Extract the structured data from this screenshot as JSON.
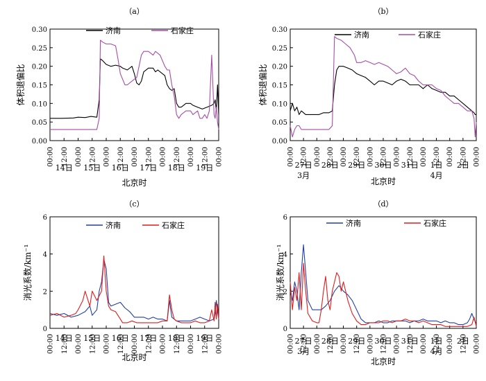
{
  "chart_data": [
    {
      "type": "line",
      "title": "（a）",
      "xlabel": "北京时",
      "ylabel": "体积退偏比",
      "ylim": [
        0,
        0.3
      ],
      "yticks": [
        0.0,
        0.05,
        0.1,
        0.15,
        0.2,
        0.25,
        0.3
      ],
      "ytick_labels": [
        "0.00",
        "0.05",
        "0.10",
        "0.15",
        "0.20",
        "0.25",
        "0.30"
      ],
      "xlim": [
        0,
        144
      ],
      "xtick_labels": [
        "00:00",
        "12:00",
        "00:00",
        "12:00",
        "00:00",
        "12:00",
        "00:00",
        "12:00",
        "00:00",
        "12:00",
        "00:00",
        "12:00",
        "00:00"
      ],
      "day_labels": [
        {
          "x": 12,
          "label": "14日"
        },
        {
          "x": 36,
          "label": "15日"
        },
        {
          "x": 60,
          "label": "16日"
        },
        {
          "x": 84,
          "label": "17日"
        },
        {
          "x": 108,
          "label": "18日"
        },
        {
          "x": 132,
          "label": "19日"
        }
      ],
      "month_labels": [],
      "legend": "top-inside",
      "series": [
        {
          "name": "济南",
          "color": "#000000",
          "x": [
            0,
            10,
            20,
            24,
            30,
            35,
            40,
            42,
            43,
            45,
            48,
            52,
            56,
            60,
            62,
            66,
            70,
            72,
            74,
            76,
            78,
            80,
            84,
            88,
            90,
            92,
            96,
            98,
            100,
            102,
            104,
            106,
            108,
            110,
            112,
            116,
            120,
            122,
            126,
            130,
            134,
            138,
            140,
            141,
            142,
            143,
            144
          ],
          "y": [
            0.06,
            0.06,
            0.061,
            0.063,
            0.062,
            0.065,
            0.063,
            0.11,
            0.22,
            0.215,
            0.205,
            0.2,
            0.203,
            0.2,
            0.195,
            0.19,
            0.2,
            0.18,
            0.155,
            0.15,
            0.16,
            0.185,
            0.195,
            0.195,
            0.185,
            0.19,
            0.18,
            0.175,
            0.15,
            0.14,
            0.135,
            0.14,
            0.1,
            0.09,
            0.09,
            0.1,
            0.1,
            0.095,
            0.09,
            0.085,
            0.09,
            0.095,
            0.1,
            0.11,
            0.08,
            0.15,
            0.07
          ]
        },
        {
          "name": "石家庄",
          "color": "#a64ca6",
          "x": [
            0,
            10,
            20,
            24,
            30,
            35,
            40,
            42,
            43,
            45,
            48,
            52,
            56,
            58,
            60,
            64,
            66,
            70,
            74,
            78,
            80,
            84,
            88,
            90,
            94,
            98,
            100,
            102,
            104,
            106,
            108,
            110,
            112,
            116,
            120,
            122,
            126,
            128,
            130,
            132,
            134,
            136,
            138,
            140,
            141,
            142,
            143,
            144
          ],
          "y": [
            0.03,
            0.03,
            0.03,
            0.03,
            0.03,
            0.03,
            0.03,
            0.06,
            0.27,
            0.265,
            0.26,
            0.26,
            0.255,
            0.22,
            0.18,
            0.15,
            0.15,
            0.16,
            0.17,
            0.23,
            0.24,
            0.24,
            0.23,
            0.24,
            0.23,
            0.2,
            0.19,
            0.19,
            0.15,
            0.12,
            0.07,
            0.06,
            0.07,
            0.08,
            0.08,
            0.07,
            0.08,
            0.06,
            0.06,
            0.07,
            0.06,
            0.08,
            0.23,
            0.07,
            0.06,
            0.09,
            0.05,
            0.03
          ]
        }
      ]
    },
    {
      "type": "line",
      "title": "（b）",
      "xlabel": "北京时",
      "ylabel": "体积退偏比",
      "ylim": [
        0,
        0.3
      ],
      "yticks": [
        0.0,
        0.05,
        0.1,
        0.15,
        0.2,
        0.25,
        0.3
      ],
      "ytick_labels": [
        "0.00",
        "0.05",
        "0.10",
        "0.15",
        "0.20",
        "0.25",
        "0.30"
      ],
      "xlim": [
        0,
        168
      ],
      "xtick_labels": [
        "00:00",
        "12:00",
        "00:00",
        "12:00",
        "00:00",
        "12:00",
        "00:00",
        "12:00",
        "00:00",
        "12:00",
        "00:00",
        "12:00",
        "00:00",
        "12:00",
        "00:00"
      ],
      "day_labels": [
        {
          "x": 12,
          "label": "27日"
        },
        {
          "x": 36,
          "label": "28日"
        },
        {
          "x": 60,
          "label": "29日"
        },
        {
          "x": 84,
          "label": "30日"
        },
        {
          "x": 108,
          "label": "31日"
        },
        {
          "x": 132,
          "label": "1日"
        },
        {
          "x": 156,
          "label": "2日"
        }
      ],
      "month_labels": [
        {
          "x": 12,
          "label": "3月"
        },
        {
          "x": 132,
          "label": "4月"
        }
      ],
      "legend": "top-inside",
      "series": [
        {
          "name": "济南",
          "color": "#000000",
          "x": [
            0,
            2,
            4,
            6,
            8,
            10,
            14,
            20,
            26,
            30,
            35,
            38,
            40,
            42,
            44,
            48,
            52,
            56,
            60,
            64,
            68,
            72,
            76,
            80,
            84,
            88,
            92,
            96,
            100,
            104,
            108,
            112,
            116,
            120,
            124,
            128,
            132,
            136,
            140,
            144,
            148,
            152,
            156,
            160,
            164,
            166,
            167,
            168
          ],
          "y": [
            0.08,
            0.1,
            0.08,
            0.09,
            0.07,
            0.08,
            0.07,
            0.07,
            0.07,
            0.075,
            0.075,
            0.08,
            0.15,
            0.19,
            0.2,
            0.2,
            0.195,
            0.19,
            0.18,
            0.175,
            0.17,
            0.16,
            0.15,
            0.16,
            0.16,
            0.155,
            0.15,
            0.16,
            0.165,
            0.16,
            0.15,
            0.15,
            0.15,
            0.14,
            0.15,
            0.14,
            0.135,
            0.13,
            0.13,
            0.12,
            0.12,
            0.11,
            0.1,
            0.09,
            0.08,
            0.075,
            0.07,
            0.07
          ]
        },
        {
          "name": "石家庄",
          "color": "#a64ca6",
          "x": [
            0,
            2,
            4,
            6,
            8,
            10,
            14,
            20,
            26,
            30,
            35,
            38,
            40,
            42,
            46,
            50,
            54,
            58,
            60,
            64,
            68,
            72,
            76,
            80,
            84,
            88,
            92,
            96,
            100,
            104,
            108,
            112,
            116,
            120,
            124,
            128,
            132,
            136,
            140,
            144,
            148,
            152,
            156,
            160,
            164,
            166,
            167,
            168
          ],
          "y": [
            0.04,
            0.01,
            0.03,
            0.04,
            0.04,
            0.03,
            0.03,
            0.03,
            0.03,
            0.03,
            0.03,
            0.04,
            0.28,
            0.275,
            0.27,
            0.26,
            0.25,
            0.23,
            0.21,
            0.21,
            0.215,
            0.21,
            0.205,
            0.21,
            0.205,
            0.2,
            0.19,
            0.18,
            0.185,
            0.195,
            0.18,
            0.175,
            0.16,
            0.15,
            0.15,
            0.15,
            0.14,
            0.135,
            0.12,
            0.11,
            0.1,
            0.1,
            0.09,
            0.08,
            0.08,
            0.06,
            0.01,
            0.05
          ]
        }
      ]
    },
    {
      "type": "line",
      "title": "（c）",
      "xlabel": "北京时",
      "ylabel": "消光系数/km⁻¹",
      "ylim": [
        0,
        6
      ],
      "yticks": [
        0,
        2,
        4,
        6
      ],
      "ytick_labels": [
        "0",
        "2",
        "4",
        "6"
      ],
      "xlim": [
        0,
        144
      ],
      "xtick_labels": [
        "00:00",
        "12:00",
        "00:00",
        "12:00",
        "00:00",
        "12:00",
        "00:00",
        "12:00",
        "00:00",
        "12:00",
        "00:00",
        "12:00",
        "00:00"
      ],
      "day_labels": [
        {
          "x": 12,
          "label": "14日"
        },
        {
          "x": 36,
          "label": "15日"
        },
        {
          "x": 60,
          "label": "16日"
        },
        {
          "x": 84,
          "label": "17日"
        },
        {
          "x": 108,
          "label": "18日"
        },
        {
          "x": 132,
          "label": "19日"
        }
      ],
      "month_labels": [],
      "legend": "top-inside",
      "series": [
        {
          "name": "济南",
          "color": "#1f3fa6",
          "x": [
            0,
            6,
            12,
            18,
            24,
            30,
            34,
            36,
            40,
            42,
            44,
            46,
            48,
            50,
            52,
            56,
            60,
            64,
            68,
            72,
            76,
            80,
            84,
            88,
            92,
            96,
            100,
            102,
            104,
            108,
            112,
            116,
            120,
            124,
            128,
            132,
            136,
            140,
            141,
            142,
            143,
            144
          ],
          "y": [
            0.8,
            0.7,
            0.8,
            0.6,
            0.7,
            0.9,
            1.2,
            0.7,
            1.0,
            2.0,
            2.5,
            3.7,
            3.2,
            1.4,
            1.2,
            1.3,
            1.4,
            1.1,
            0.9,
            0.6,
            0.6,
            0.6,
            0.5,
            0.6,
            0.5,
            0.5,
            0.4,
            1.5,
            0.6,
            0.4,
            0.4,
            0.4,
            0.4,
            0.5,
            0.6,
            0.5,
            0.4,
            0.5,
            0.8,
            1.5,
            0.9,
            0.5
          ]
        },
        {
          "name": "石家庄",
          "color": "#e01b1b",
          "x": [
            0,
            6,
            12,
            18,
            22,
            24,
            28,
            30,
            34,
            36,
            40,
            44,
            46,
            48,
            50,
            52,
            56,
            60,
            62,
            66,
            70,
            74,
            78,
            84,
            88,
            92,
            96,
            100,
            102,
            104,
            106,
            108,
            112,
            116,
            120,
            124,
            128,
            132,
            136,
            138,
            140,
            141,
            142,
            143,
            144
          ],
          "y": [
            0.7,
            0.8,
            0.6,
            0.7,
            0.8,
            1.0,
            1.5,
            2.0,
            1.2,
            2.0,
            1.5,
            2.0,
            3.9,
            2.0,
            1.2,
            1.0,
            0.9,
            0.5,
            0.3,
            0.3,
            0.4,
            0.3,
            0.3,
            0.3,
            0.3,
            0.3,
            0.4,
            0.4,
            1.8,
            1.0,
            0.5,
            0.4,
            0.3,
            0.3,
            0.3,
            0.4,
            0.3,
            0.3,
            0.4,
            1.0,
            0.4,
            1.4,
            0.5,
            1.3,
            0.5
          ]
        }
      ]
    },
    {
      "type": "line",
      "title": "（d）",
      "xlabel": "北京时",
      "ylabel": "消光系数/km⁻¹",
      "ylim": [
        0,
        6
      ],
      "yticks": [
        0,
        2,
        4,
        6
      ],
      "ytick_labels": [
        "0",
        "2",
        "4",
        "6"
      ],
      "xlim": [
        0,
        168
      ],
      "xtick_labels": [
        "00:00",
        "12:00",
        "00:00",
        "12:00",
        "00:00",
        "12:00",
        "00:00",
        "12:00",
        "00:00",
        "12:00",
        "00:00",
        "12:00",
        "00:00",
        "12:00",
        "00:00"
      ],
      "day_labels": [
        {
          "x": 12,
          "label": "27日"
        },
        {
          "x": 36,
          "label": "28日"
        },
        {
          "x": 60,
          "label": "29日"
        },
        {
          "x": 84,
          "label": "30日"
        },
        {
          "x": 108,
          "label": "31日"
        },
        {
          "x": 132,
          "label": "1日"
        },
        {
          "x": 156,
          "label": "2日"
        }
      ],
      "month_labels": [
        {
          "x": 12,
          "label": "3月"
        },
        {
          "x": 132,
          "label": "4月"
        }
      ],
      "legend": "top-inside",
      "series": [
        {
          "name": "济南",
          "color": "#1f3fa6",
          "x": [
            0,
            2,
            4,
            6,
            8,
            10,
            12,
            14,
            16,
            20,
            24,
            28,
            32,
            36,
            40,
            44,
            48,
            52,
            56,
            60,
            64,
            68,
            72,
            76,
            80,
            84,
            88,
            92,
            96,
            100,
            104,
            108,
            112,
            116,
            120,
            124,
            128,
            132,
            136,
            140,
            144,
            148,
            152,
            156,
            160,
            162,
            164,
            168
          ],
          "y": [
            2.0,
            1.5,
            2.5,
            2.0,
            1.0,
            3.0,
            4.5,
            3.0,
            1.5,
            1.0,
            1.0,
            1.0,
            1.2,
            1.5,
            2.0,
            2.3,
            2.0,
            1.8,
            1.5,
            1.0,
            0.5,
            0.3,
            0.3,
            0.3,
            0.4,
            0.3,
            0.3,
            0.4,
            0.4,
            0.4,
            0.4,
            0.3,
            0.4,
            0.4,
            0.5,
            0.4,
            0.4,
            0.4,
            0.3,
            0.4,
            0.3,
            0.3,
            0.2,
            0.2,
            0.3,
            0.5,
            0.8,
            0.2
          ]
        },
        {
          "name": "石家庄",
          "color": "#e01b1b",
          "x": [
            0,
            2,
            4,
            6,
            8,
            10,
            12,
            14,
            16,
            20,
            24,
            26,
            28,
            30,
            32,
            34,
            36,
            38,
            40,
            42,
            44,
            46,
            48,
            52,
            56,
            60,
            64,
            68,
            72,
            76,
            80,
            84,
            88,
            92,
            96,
            100,
            104,
            108,
            112,
            116,
            120,
            124,
            128,
            132,
            136,
            140,
            144,
            148,
            152,
            156,
            160,
            164,
            166,
            168
          ],
          "y": [
            2.5,
            1.0,
            2.2,
            1.5,
            3.0,
            1.0,
            3.5,
            2.0,
            0.8,
            0.4,
            0.3,
            0.3,
            1.0,
            2.0,
            2.8,
            1.5,
            1.0,
            2.0,
            2.5,
            3.0,
            2.8,
            2.0,
            2.5,
            1.5,
            0.8,
            0.4,
            0.2,
            0.2,
            0.3,
            0.3,
            0.3,
            0.4,
            0.4,
            0.3,
            0.4,
            0.4,
            0.5,
            0.4,
            0.4,
            0.3,
            0.4,
            0.3,
            0.2,
            0.2,
            0.2,
            0.1,
            0.1,
            0.1,
            0.1,
            0.1,
            0.1,
            0.2,
            0.6,
            0.1
          ]
        }
      ]
    }
  ]
}
